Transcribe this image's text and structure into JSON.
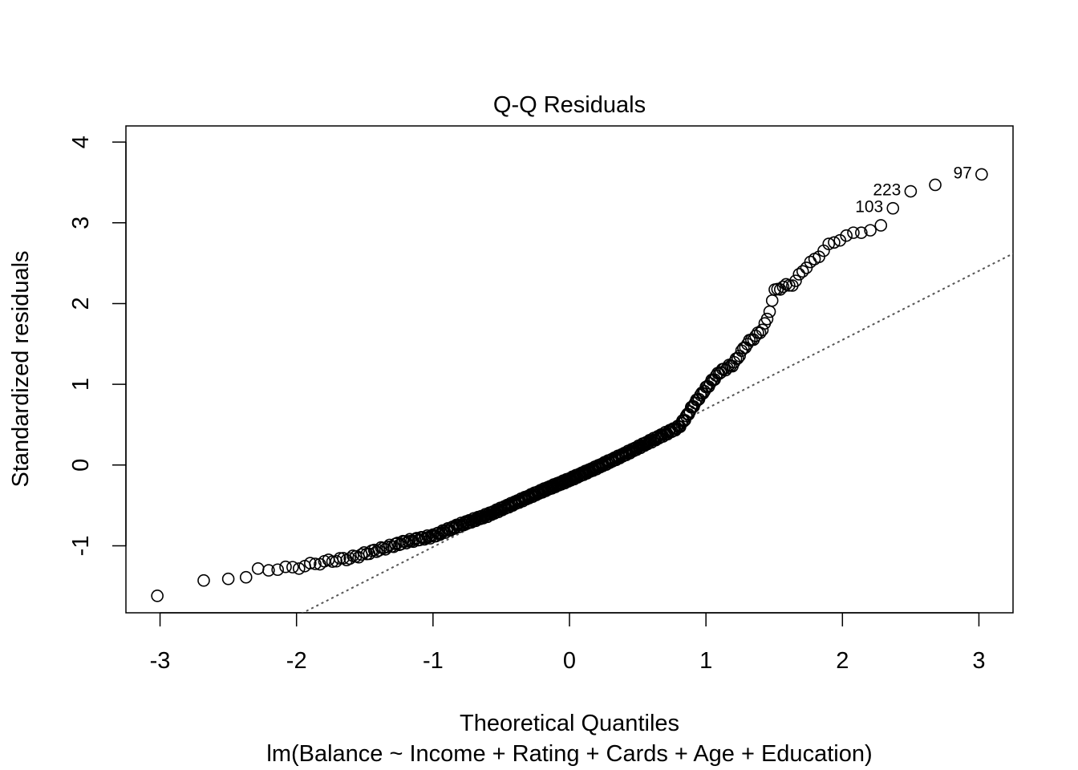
{
  "chart_data": {
    "type": "scatter",
    "title": "Q-Q Residuals",
    "xlabel": "Theoretical Quantiles",
    "ylabel": "Standardized residuals",
    "subtitle": "lm(Balance ~ Income + Rating + Cards + Age + Education)",
    "xlim": [
      -3.25,
      3.25
    ],
    "ylim": [
      -1.83,
      4.2
    ],
    "x_ticks": [
      -3,
      -2,
      -1,
      0,
      1,
      2,
      3
    ],
    "y_ticks": [
      -1,
      0,
      1,
      2,
      3,
      4
    ],
    "x_tick_labels": [
      "-3",
      "-2",
      "-1",
      "0",
      "1",
      "2",
      "3"
    ],
    "y_tick_labels": [
      "-1",
      "0",
      "1",
      "2",
      "3",
      "4"
    ],
    "reference_line": {
      "slope": 0.855,
      "intercept": -0.16,
      "style": "dotted",
      "color": "#555555"
    },
    "marker": {
      "shape": "open-circle",
      "color": "#000000"
    },
    "grid": false,
    "curve_knots": [
      [
        -2.3,
        -1.3
      ],
      [
        -2.0,
        -1.27
      ],
      [
        -1.8,
        -1.2
      ],
      [
        -1.6,
        -1.15
      ],
      [
        -1.4,
        -1.05
      ],
      [
        -1.2,
        -0.95
      ],
      [
        -1.0,
        -0.88
      ],
      [
        -0.8,
        -0.74
      ],
      [
        -0.6,
        -0.62
      ],
      [
        -0.4,
        -0.47
      ],
      [
        -0.2,
        -0.32
      ],
      [
        0.0,
        -0.18
      ],
      [
        0.2,
        -0.03
      ],
      [
        0.4,
        0.13
      ],
      [
        0.6,
        0.3
      ],
      [
        0.8,
        0.47
      ],
      [
        0.85,
        0.58
      ],
      [
        0.9,
        0.72
      ],
      [
        1.0,
        0.95
      ],
      [
        1.1,
        1.15
      ],
      [
        1.2,
        1.25
      ],
      [
        1.3,
        1.5
      ],
      [
        1.4,
        1.65
      ],
      [
        1.45,
        1.8
      ],
      [
        1.5,
        2.15
      ],
      [
        1.55,
        2.2
      ],
      [
        1.65,
        2.25
      ],
      [
        1.7,
        2.4
      ],
      [
        1.8,
        2.55
      ],
      [
        1.9,
        2.72
      ],
      [
        2.0,
        2.82
      ],
      [
        2.1,
        2.87
      ],
      [
        2.2,
        2.92
      ],
      [
        2.3,
        2.96
      ]
    ],
    "points": [
      {
        "x": -3.02,
        "y": -1.62
      },
      {
        "x": -2.68,
        "y": -1.43
      },
      {
        "x": -2.5,
        "y": -1.41
      },
      {
        "x": -2.37,
        "y": -1.39
      },
      {
        "x": 2.37,
        "y": 3.18,
        "label": "103"
      },
      {
        "x": 2.5,
        "y": 3.39,
        "label": "223"
      },
      {
        "x": 2.68,
        "y": 3.47
      },
      {
        "x": 3.02,
        "y": 3.6,
        "label": "97"
      }
    ],
    "n_points": 400
  }
}
